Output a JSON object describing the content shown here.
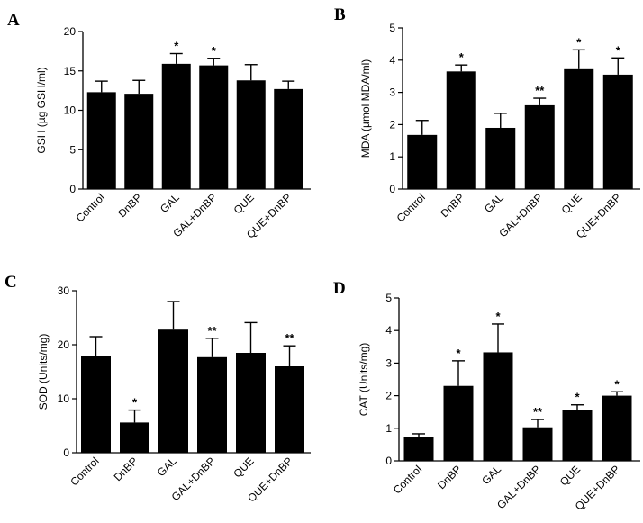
{
  "chart_data": [
    {
      "panel": "A",
      "type": "bar",
      "ylabel": "GSH (µg GSH/ml)",
      "categories": [
        "Control",
        "DnBP",
        "GAL",
        "GAL+DnBP",
        "QUE",
        "QUE+DnBP"
      ],
      "values": [
        12.3,
        12.1,
        15.9,
        15.7,
        13.8,
        12.7
      ],
      "errors": [
        1.4,
        1.7,
        1.3,
        0.9,
        2.0,
        1.0
      ],
      "significance": [
        "",
        "",
        "*",
        "*",
        "",
        ""
      ],
      "ylim": [
        0,
        20
      ],
      "yticks": [
        0,
        5,
        10,
        15,
        20
      ]
    },
    {
      "panel": "B",
      "type": "bar",
      "ylabel": "MDA (µmol MDA/ml)",
      "categories": [
        "Control",
        "DnBP",
        "GAL",
        "GAL+DnBP",
        "QUE",
        "QUE+DnBP"
      ],
      "values": [
        1.68,
        3.65,
        1.9,
        2.6,
        3.72,
        3.55
      ],
      "errors": [
        0.45,
        0.2,
        0.45,
        0.22,
        0.6,
        0.52
      ],
      "significance": [
        "",
        "*",
        "",
        "**",
        "*",
        "*"
      ],
      "ylim": [
        0,
        5
      ],
      "yticks": [
        0,
        1,
        2,
        3,
        4,
        5
      ]
    },
    {
      "panel": "C",
      "type": "bar",
      "ylabel": "SOD (Units/mg)",
      "categories": [
        "Control",
        "DnBP",
        "GAL",
        "GAL+DnBP",
        "QUE",
        "QUE+DnBP"
      ],
      "values": [
        18.0,
        5.6,
        22.8,
        17.7,
        18.5,
        16.0
      ],
      "errors": [
        3.5,
        2.3,
        5.2,
        3.5,
        5.6,
        3.8
      ],
      "significance": [
        "",
        "*",
        "",
        "**",
        "",
        "**"
      ],
      "ylim": [
        0,
        30
      ],
      "yticks": [
        0,
        10,
        20,
        30
      ]
    },
    {
      "panel": "D",
      "type": "bar",
      "ylabel": "CAT (Units/mg)",
      "categories": [
        "Control",
        "DnBP",
        "GAL",
        "GAL+DnBP",
        "QUE",
        "QUE+DnBP"
      ],
      "values": [
        0.73,
        2.3,
        3.33,
        1.03,
        1.57,
        2.0
      ],
      "errors": [
        0.1,
        0.77,
        0.87,
        0.24,
        0.15,
        0.12
      ],
      "significance": [
        "",
        "*",
        "*",
        "**",
        "*",
        "*"
      ],
      "ylim": [
        0,
        5
      ],
      "yticks": [
        0,
        1,
        2,
        3,
        4,
        5
      ]
    }
  ]
}
